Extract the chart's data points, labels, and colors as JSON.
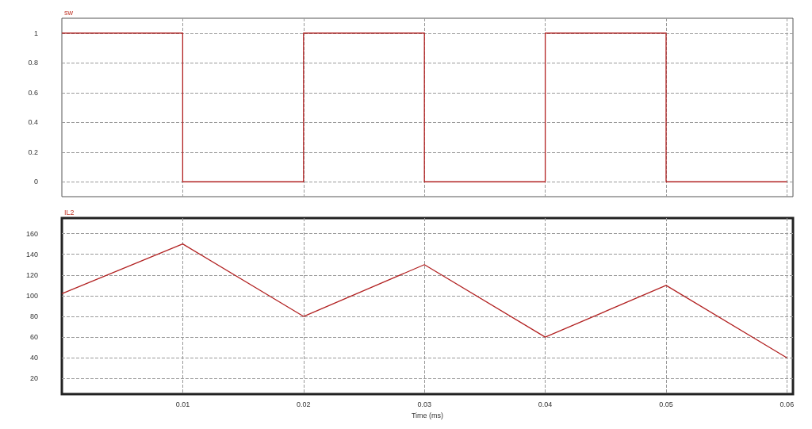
{
  "chart_data": [
    {
      "type": "step",
      "title": "sw",
      "x": [
        0,
        0.01,
        0.02,
        0.03,
        0.04,
        0.05,
        0.06
      ],
      "series": [
        {
          "color": "#b22222",
          "values": [
            1,
            0,
            1,
            0,
            1,
            0,
            0
          ]
        }
      ],
      "xlim": [
        0,
        0.0605
      ],
      "xticks": [
        0.01,
        0.02,
        0.03,
        0.04,
        0.05,
        0.06
      ],
      "ylim": [
        -0.1,
        1.1
      ],
      "yticks": [
        0,
        0.2,
        0.4,
        0.6,
        0.8,
        1
      ],
      "grid": true,
      "tick_labels": "y"
    },
    {
      "type": "line",
      "title": "IL2",
      "xlabel": "Time (ms)",
      "x": [
        0,
        0.01,
        0.02,
        0.03,
        0.04,
        0.05,
        0.06
      ],
      "series": [
        {
          "color": "#b22222",
          "values": [
            102,
            150,
            80,
            130,
            60,
            110,
            40
          ]
        }
      ],
      "xlim": [
        0,
        0.0605
      ],
      "xticks": [
        0.01,
        0.02,
        0.03,
        0.04,
        0.05,
        0.06
      ],
      "ylim": [
        5,
        175
      ],
      "yticks": [
        20,
        40,
        60,
        80,
        100,
        120,
        140,
        160
      ],
      "grid": true
    }
  ]
}
